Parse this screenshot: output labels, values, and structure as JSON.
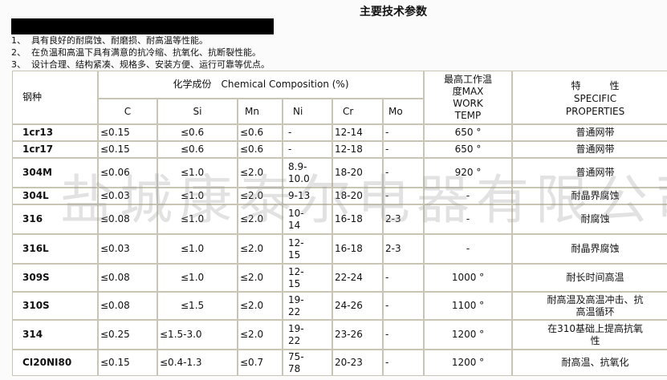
{
  "title": "主要技术参数",
  "features": [
    {
      "num": "1、",
      "text": "具有良好的耐腐蚀、耐磨损、耐高温等性能。"
    },
    {
      "num": "2、",
      "text": "在负温和高温下具有满意的抗冷缩、抗氧化、抗断裂性能。"
    },
    {
      "num": "3、",
      "text": "设计合理、结构紧凑、规格多、安装方便、运行可靠等优点。"
    }
  ],
  "table": {
    "grade_header": "钢种",
    "composition_header": "化学成份　Chemical Composition (%)",
    "temp_header": [
      "最高工作温",
      "度MAX",
      "WORK",
      "TEMP"
    ],
    "prop_header": [
      "特　　　性",
      "SPECIFIC",
      "PROPERTIES"
    ],
    "element_headers": [
      "C",
      "Si",
      "Mn",
      "Ni",
      "Cr",
      "Mo"
    ],
    "rows": [
      {
        "grade": "1cr13",
        "c": "≤0.15",
        "si": "≤0.6",
        "mn": "≤0.6",
        "ni": "-",
        "cr": "12-14",
        "mo": "-",
        "temp": "650 °",
        "prop": "普通网带"
      },
      {
        "grade": "1cr17",
        "c": "≤0.15",
        "si": "≤0.6",
        "mn": "≤0.6",
        "ni": "-",
        "cr": "12-18",
        "mo": "-",
        "temp": "650 °",
        "prop": "普通网带"
      },
      {
        "grade": "304M",
        "c": "≤0.06",
        "si": "≤1.0",
        "mn": "≤2.0",
        "ni": "8.9-10.0",
        "cr": "18-20",
        "mo": "-",
        "temp": "920 °",
        "prop": "普通网带"
      },
      {
        "grade": "304L",
        "c": "≤0.03",
        "si": "≤1.0",
        "mn": "≤2.0",
        "ni": "9-13",
        "cr": "18-20",
        "mo": "-",
        "temp": "-",
        "prop": "耐晶界腐蚀"
      },
      {
        "grade": "316",
        "c": "≤0.08",
        "si": "≤1.0",
        "mn": "≤2.0",
        "ni": "10-14",
        "cr": "16-18",
        "mo": "2-3",
        "temp": "-",
        "prop": "耐腐蚀"
      },
      {
        "grade": "316L",
        "c": "≤0.03",
        "si": "≤1.0",
        "mn": "≤2.0",
        "ni": "12-15",
        "cr": "16-18",
        "mo": "2-3",
        "temp": "-",
        "prop": "耐晶界腐蚀"
      },
      {
        "grade": "309S",
        "c": "≤0.08",
        "si": "≤1.0",
        "mn": "≤2.0",
        "ni": "12-15",
        "cr": "22-24",
        "mo": "-",
        "temp": "1000 °",
        "prop": "耐长时间高温"
      },
      {
        "grade": "310S",
        "c": "≤0.08",
        "si": "≤1.5",
        "mn": "≤2.0",
        "ni": "19-22",
        "cr": "24-26",
        "mo": "-",
        "temp": "1100 °",
        "prop": "耐高温及高温冲击、抗高温循环"
      },
      {
        "grade": "314",
        "c": "≤0.25",
        "si": "≤1.5-3.0",
        "mn": "≤2.0",
        "ni": "19-22",
        "cr": "23-26",
        "mo": "-",
        "temp": "1200 °",
        "prop": "在310基础上提高抗氧性"
      },
      {
        "grade": "CI20NI80",
        "c": "≤0.15",
        "si": "≤0.4-1.3",
        "mn": "≤0.7",
        "ni": "75-78",
        "cr": "20-23",
        "mo": "-",
        "temp": "1200 °",
        "prop": "耐高温、抗氧化"
      }
    ]
  },
  "watermark": "盐城康泰尔电器有限公司"
}
